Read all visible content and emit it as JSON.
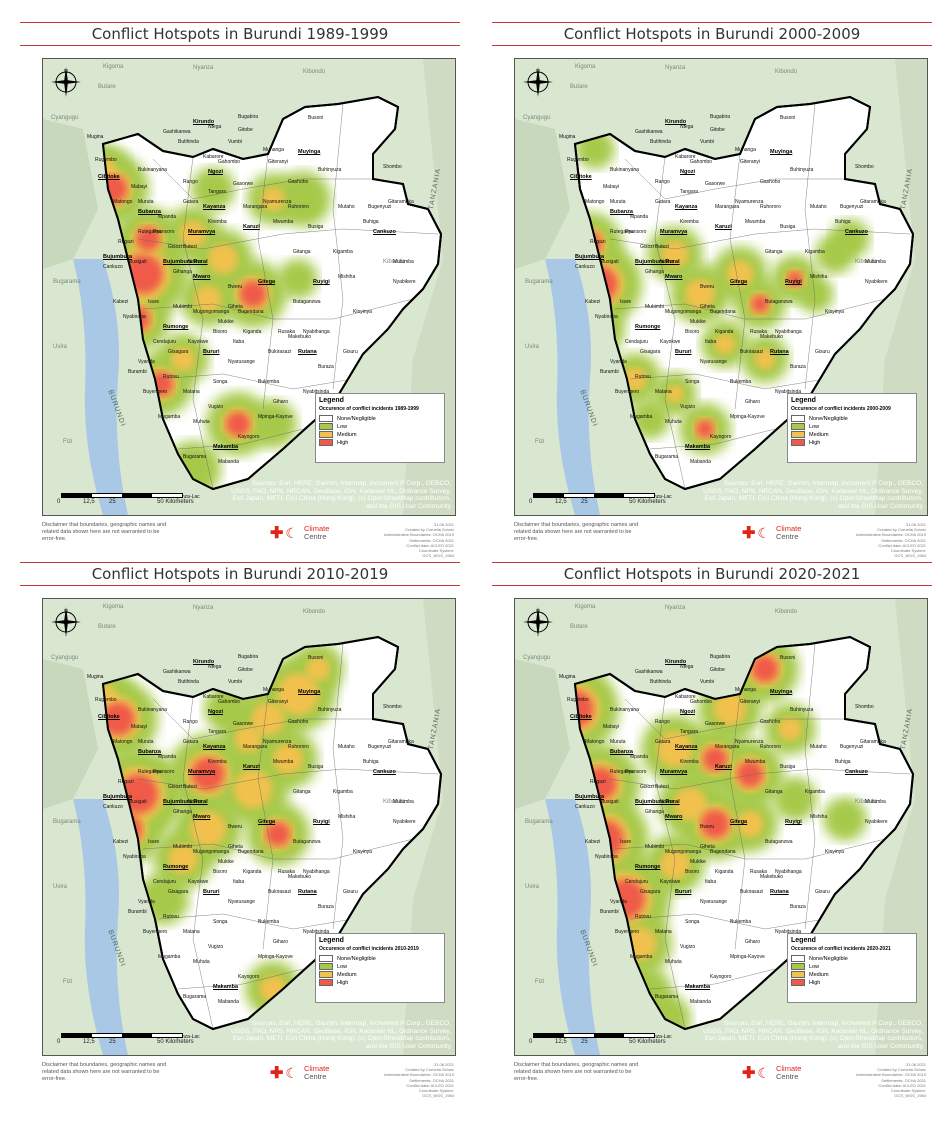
{
  "panels": [
    {
      "title": "Conflict Hotspots in Burundi 1989-1999",
      "legend_sub": "Occurence of conflict incidents 1989-1999"
    },
    {
      "title": "Conflict Hotspots in Burundi 2000-2009",
      "legend_sub": "Occurence of conflict incidents 2000-2009"
    },
    {
      "title": "Conflict Hotspots in Burundi 2010-2019",
      "legend_sub": "Occurence of conflict incidents 2010-2019"
    },
    {
      "title": "Conflict Hotspots in Burundi 2020-2021",
      "legend_sub": "Occurence of conflict incidents 2020-2021"
    }
  ],
  "legend": {
    "title": "Legend",
    "classes": [
      {
        "label": "None/Negligible",
        "color": "#ffffff"
      },
      {
        "label": "Low",
        "color": "#a6c94a"
      },
      {
        "label": "Medium",
        "color": "#f2c14e"
      },
      {
        "label": "High",
        "color": "#ef5a4a"
      }
    ]
  },
  "sources": "Sources: Esri, HERE, Garmin, Intermap, increment P Corp., GEBCO, USGS, FAO, NPS, NRCAN, GeoBase, IGN, Kadaster NL, Ordnance Survey, Esri Japan, METI, Esri China (Hong Kong), (c) OpenStreetMap contributors, and the GIS User Community",
  "scale": {
    "labels": [
      "0",
      "12,5",
      "25",
      "50 Kilometers"
    ]
  },
  "disclaimer": "Disclaimer that boundaries, geographic names and related data shown here are not warranted to be error-free.",
  "logo": {
    "line1": "Climate",
    "line2": "Centre"
  },
  "meta": [
    "31.08.2021",
    "Created by Cornelia Scholz",
    "Administrative Boundaries: OCHA 2019",
    "Settlements: OCHA 2021",
    "Conflict data: ACLED 2021",
    "Coordinate System:",
    "GCS_WGS_1984"
  ],
  "provinces": [
    "Kirundo",
    "Muyinga",
    "Cibitoke",
    "Ngozi",
    "Kayanza",
    "Bubanza",
    "Muramvya",
    "Karuzi",
    "Cankuzo",
    "Bujumbura",
    "Bujumbura Rural",
    "Mwaro",
    "Gitega",
    "Ruyigi",
    "Rumonge",
    "Bururi",
    "Rutana",
    "Makamba"
  ],
  "places": [
    "Bugabira",
    "Busoni",
    "Ntega",
    "Gitobe",
    "Vumbi",
    "Mugina",
    "Rugombo",
    "Buhinyuza",
    "Gashoho",
    "Muhanga",
    "Bukinanyana",
    "Mabayi",
    "Gatara",
    "Tangara",
    "Gasorwe",
    "Giteranyi",
    "Nyanza-Lac",
    "Mabanda",
    "Kayogoro",
    "Vugizo",
    "Nyabitsinda",
    "Gisuru",
    "Kinyinya",
    "Bukemba",
    "Giharo",
    "Mpinga-Kayove",
    "Songa",
    "Matana",
    "Rutovu",
    "Vyanda",
    "Burambi",
    "Buyengero",
    "Bugarama",
    "Muhuta",
    "Kabezi",
    "Isare",
    "Mubimbi",
    "Nyabiraba",
    "Mugongomanga",
    "Mukike",
    "Kiganda",
    "Rusaka",
    "Kayokwe",
    "Nyarusange",
    "Bukirasazi",
    "Buraza",
    "Itaba",
    "Makebuko",
    "Bugendana",
    "Giheta",
    "Nyabihanga",
    "Butaganzwa",
    "Bisoro",
    "Ndava",
    "Gisozi",
    "Ryansoro",
    "Rutegama",
    "Rugazi",
    "Musigati",
    "Gihanga",
    "Mpanda",
    "Matongo",
    "Muruta",
    "Rango",
    "Gahombo",
    "Kabarore",
    "Butihinda",
    "Gashikanwa",
    "Kiremba",
    "Marangara",
    "Nyamurenza",
    "Ruhororo",
    "Mwumba",
    "Busiga",
    "Mutaho",
    "Shombo",
    "Bugenyuzi",
    "Gitaramuka",
    "Buhiga",
    "Mutumba",
    "Nyabikere",
    "Kigamba",
    "Mishiha",
    "Cendajuru",
    "Gisagara",
    "Cankuzo",
    "Bweru",
    "Butezi",
    "Gitanga",
    "Mugamba",
    "Mutambu",
    "Rumonge",
    "Muhanga",
    "Mabayi",
    "Buganda",
    "Murwi",
    "Rugazi"
  ],
  "bg_labels": [
    "Nyanza",
    "Butare",
    "Kibondo",
    "Kigoma",
    "Kibondo",
    "Cyangugu",
    "Bugarama",
    "Uvira",
    "Fizi"
  ],
  "bg_vertical": [
    "TANZANIA",
    "BURUNDI"
  ]
}
